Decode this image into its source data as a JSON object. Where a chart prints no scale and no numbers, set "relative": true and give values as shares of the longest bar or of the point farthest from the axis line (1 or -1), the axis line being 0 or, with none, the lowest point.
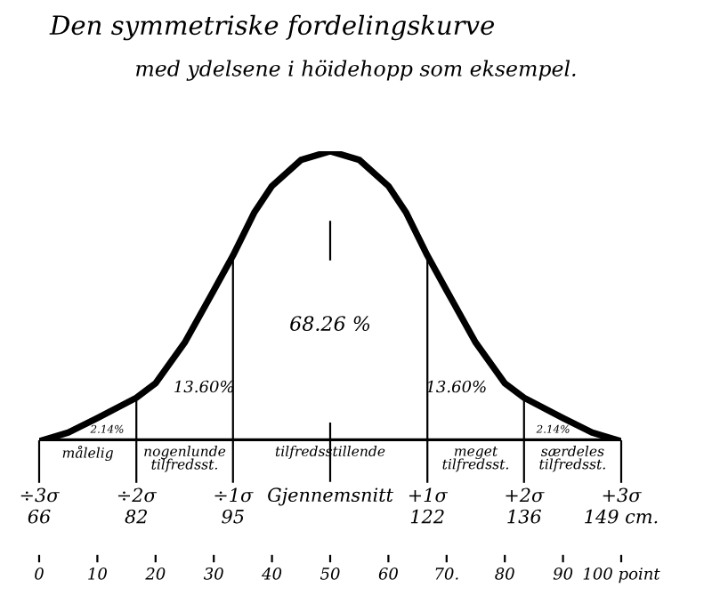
{
  "chart_data": {
    "type": "line",
    "relative": true,
    "title": "Den symmetriske fordelingskurve",
    "subtitle": "med ydelsene i höidehopp som eksempel.",
    "x": [
      0,
      5,
      10,
      16.7,
      20,
      25,
      30,
      33.3,
      37,
      40,
      45,
      50,
      55,
      60,
      63,
      66.7,
      70,
      75,
      80,
      83.3,
      90,
      95,
      100
    ],
    "series": [
      {
        "color": "#000000",
        "values": [
          0,
          0.03,
          0.08,
          0.15,
          0.2,
          0.34,
          0.52,
          0.64,
          0.79,
          0.88,
          0.97,
          1,
          0.97,
          0.88,
          0.79,
          0.64,
          0.52,
          0.34,
          0.2,
          0.15,
          0.08,
          0.03,
          0
        ]
      }
    ],
    "xlim": [
      0,
      100
    ],
    "xticks": [
      0,
      10,
      20,
      30,
      40,
      50,
      60,
      {
        "value": 70,
        "label": "70."
      },
      80,
      90,
      {
        "value": 100,
        "label": "100 point"
      }
    ],
    "ref_lines": [
      {
        "axis": "x",
        "value": 0,
        "label": "÷3σ\n66"
      },
      {
        "axis": "x",
        "value": 16.7,
        "label": "÷2σ\n82"
      },
      {
        "axis": "x",
        "value": 33.3,
        "label": "÷1σ\n95"
      },
      {
        "axis": "x",
        "value": 50,
        "label": "Gjennemsnitt",
        "line_style": "dashed"
      },
      {
        "axis": "x",
        "value": 66.7,
        "label": "+1σ\n122"
      },
      {
        "axis": "x",
        "value": 83.3,
        "label": "+2σ\n136"
      },
      {
        "axis": "x",
        "value": 100,
        "label": "+3σ\n149 cm."
      }
    ],
    "annotations": [
      "målelig",
      "nogenlunde\ntilfredsst.",
      "tilfredsstillende",
      "meget\ntilfredsst.",
      "særdeles\ntilfredsst.",
      "2.14%",
      "13.60%",
      "68.26 %",
      "13.60%",
      "2.14%"
    ],
    "grid": false,
    "legend": false,
    "marker": "none",
    "line_style": "solid"
  }
}
